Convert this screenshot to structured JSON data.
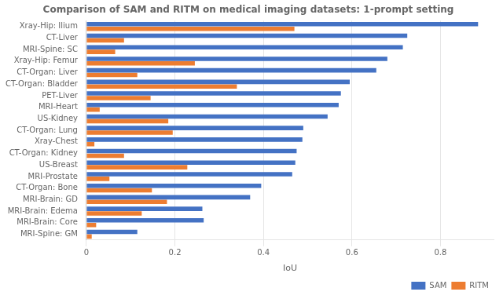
{
  "chart_data": {
    "type": "bar",
    "orientation": "horizontal",
    "title": "Comparison of SAM and RITM on medical imaging datasets: 1-prompt setting",
    "xlabel": "IoU",
    "categories": [
      "Xray-Hip: Ilium",
      "CT-Liver",
      "MRI-Spine: SC",
      "Xray-Hip: Femur",
      "CT-Organ: Liver",
      "CT-Organ: Bladder",
      "PET-Liver",
      "MRI-Heart",
      "US-Kidney",
      "CT-Organ: Lung",
      "Xray-Chest",
      "CT-Organ: Kidney",
      "US-Breast",
      "MRI-Prostate",
      "CT-Organ: Bone",
      "MRI-Brain: GD",
      "MRI-Brain: Edema",
      "MRI-Brain: Core",
      "MRI-Spine: GM"
    ],
    "series": [
      {
        "name": "SAM",
        "color": "#4472C4",
        "values": [
          0.885,
          0.725,
          0.715,
          0.68,
          0.655,
          0.595,
          0.575,
          0.57,
          0.545,
          0.49,
          0.488,
          0.475,
          0.472,
          0.465,
          0.395,
          0.37,
          0.262,
          0.265,
          0.115
        ]
      },
      {
        "name": "RITM",
        "color": "#ED7D31",
        "values": [
          0.47,
          0.085,
          0.065,
          0.245,
          0.115,
          0.34,
          0.145,
          0.03,
          0.185,
          0.195,
          0.018,
          0.085,
          0.228,
          0.052,
          0.148,
          0.182,
          0.125,
          0.022,
          0.012
        ]
      }
    ],
    "xlim": [
      0,
      0.92
    ],
    "xticks": [
      0,
      0.2,
      0.4,
      0.6,
      0.8
    ],
    "grid": true,
    "legend": "lower right"
  }
}
